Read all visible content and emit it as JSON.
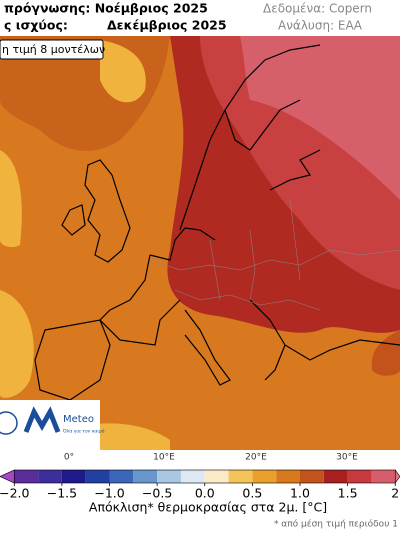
{
  "header": {
    "forecast_line": "πρόγνωσης: Νοέμβριος 2025",
    "valid_line": "ς ισχύος:",
    "valid_month": "Δεκέμβριος 2025",
    "data_source": "Δεδομένα: Copern",
    "analysis": "Ανάλυση: ΕΑΑ"
  },
  "map": {
    "badge": "η τιμή 8 μοντέλων",
    "longitude_labels": [
      "0°",
      "10°E",
      "20°E",
      "30°E"
    ],
    "logo": {
      "name": "Meteo",
      "tagline": "Όλα για τον καιρό"
    }
  },
  "colorbar": {
    "lim": [
      -2.15,
      2.05
    ],
    "bounds": [
      -2,
      -1.75,
      -1.5,
      -1.25,
      -1,
      -0.75,
      -0.5,
      -0.25,
      0,
      0.25,
      0.5,
      0.75,
      1,
      1.25,
      1.5,
      1.75,
      2
    ],
    "colors": [
      "#5b2d9b",
      "#3d2e9c",
      "#1d1b8a",
      "#2140a2",
      "#3b67b9",
      "#6b96cd",
      "#a9c6e3",
      "#dde8f3",
      "#fbe9c8",
      "#f4c45a",
      "#e9a12c",
      "#d8791e",
      "#c2531a",
      "#a8201f",
      "#c8393d",
      "#d65d6b"
    ],
    "under_color": "#a746c6",
    "over_color": "#e07484",
    "ticks": [
      {
        "value": -2,
        "label": "−2.0"
      },
      {
        "value": -1.5,
        "label": "−1.5"
      },
      {
        "value": -1,
        "label": "−1.0"
      },
      {
        "value": -0.5,
        "label": "−0.5"
      },
      {
        "value": 0,
        "label": "0.0"
      },
      {
        "value": 0.5,
        "label": "0.5"
      },
      {
        "value": 1,
        "label": "1.0"
      },
      {
        "value": 1.5,
        "label": "1.5"
      },
      2
    ],
    "label": "Απόκλιση* θερμοκρασίας στα 2μ. [°C]",
    "footnote": "* από μέση τιμή περιόδου 1"
  }
}
